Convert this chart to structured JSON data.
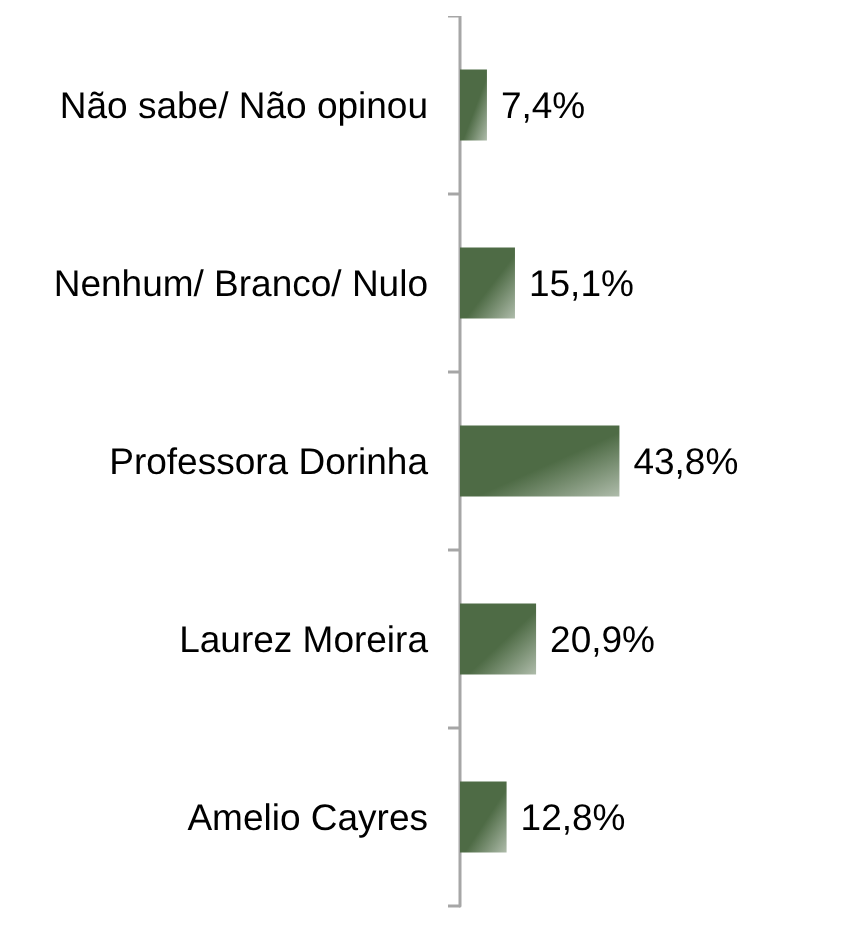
{
  "chart_data": {
    "type": "bar",
    "orientation": "horizontal",
    "categories": [
      "Não sabe/ Não opinou",
      "Nenhum/ Branco/ Nulo",
      "Professora Dorinha",
      "Laurez Moreira",
      "Amelio Cayres"
    ],
    "values": [
      7.4,
      15.1,
      43.8,
      20.9,
      12.8
    ],
    "value_labels": [
      "7,4%",
      "15,1%",
      "43,8%",
      "20,9%",
      "12,8%"
    ],
    "color": "#4e6b45",
    "tick_labels": "y"
  }
}
